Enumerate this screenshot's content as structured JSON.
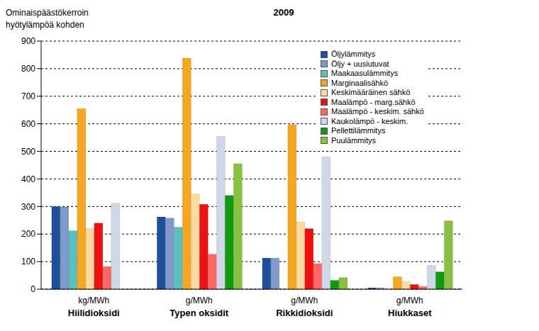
{
  "chart_data": {
    "type": "bar",
    "title": "2009",
    "y_label": "Ominaispäästökerroin hyötylämpöä kohden",
    "categories": [
      "Hiilidioksidi",
      "Typen oksidit",
      "Rikkidioksidi",
      "Hiukkaset"
    ],
    "category_units": [
      "kg/MWh",
      "g/MWh",
      "g/MWh",
      "g/MWh"
    ],
    "series": [
      {
        "name": "Öljylämmitys",
        "color": "#1f4e9a",
        "values": [
          300,
          262,
          113,
          5
        ]
      },
      {
        "name": "Öljy + uusiutuvat",
        "color": "#7f9acb",
        "values": [
          298,
          258,
          113,
          5
        ]
      },
      {
        "name": "Maakaasulämmitys",
        "color": "#5bbfc0",
        "values": [
          212,
          225,
          null,
          null
        ]
      },
      {
        "name": "Marginaalisähkö",
        "color": "#f5a623",
        "values": [
          655,
          838,
          597,
          45
        ]
      },
      {
        "name": "Keskimääräinen sähkö",
        "color": "#ffd9a0",
        "values": [
          220,
          345,
          243,
          28
        ]
      },
      {
        "name": "Maalämpö - marg.sähkö",
        "color": "#ee1111",
        "values": [
          240,
          308,
          220,
          17
        ]
      },
      {
        "name": "Maalämpö - keskim. sähkö",
        "color": "#ff6666",
        "values": [
          82,
          127,
          93,
          10
        ]
      },
      {
        "name": "Kaukolämpö - keskim.",
        "color": "#d0d8e8",
        "values": [
          312,
          555,
          480,
          87
        ]
      },
      {
        "name": "Pellettilämmitys",
        "color": "#119911",
        "values": [
          null,
          340,
          32,
          63
        ]
      },
      {
        "name": "Puulämmitys",
        "color": "#88c040",
        "values": [
          null,
          455,
          42,
          248
        ]
      }
    ],
    "ylim": [
      0,
      900
    ],
    "yticks": [
      0,
      100,
      200,
      300,
      400,
      500,
      600,
      700,
      800,
      900
    ],
    "grid": true,
    "legend": "upper right"
  }
}
